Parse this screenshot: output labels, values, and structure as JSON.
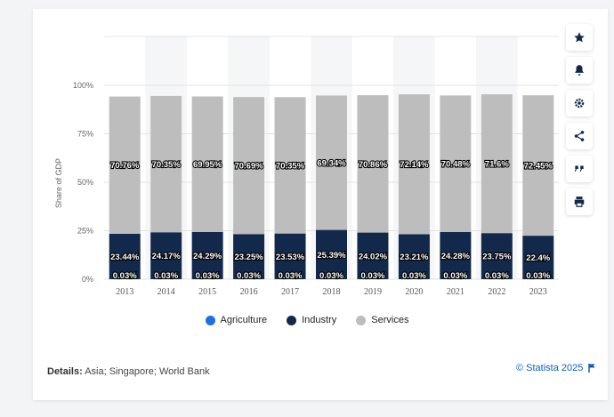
{
  "chart_data": {
    "type": "bar",
    "stacked": true,
    "categories": [
      "2013",
      "2014",
      "2015",
      "2016",
      "2017",
      "2018",
      "2019",
      "2020",
      "2021",
      "2022",
      "2023"
    ],
    "series": [
      {
        "name": "Agriculture",
        "values": [
          0.03,
          0.03,
          0.03,
          0.03,
          0.03,
          0.03,
          0.03,
          0.03,
          0.03,
          0.03,
          0.03
        ],
        "labels": [
          "0.03%",
          "0.03%",
          "0.03%",
          "0.03%",
          "0.03%",
          "0.03%",
          "0.03%",
          "0.03%",
          "0.03%",
          "0.03%",
          "0.03%"
        ],
        "color": "#1e6fe0"
      },
      {
        "name": "Industry",
        "values": [
          23.44,
          24.17,
          24.29,
          23.25,
          23.53,
          25.39,
          24.02,
          23.21,
          24.28,
          23.75,
          22.4
        ],
        "labels": [
          "23.44%",
          "24.17%",
          "24.29%",
          "23.25%",
          "23.53%",
          "25.39%",
          "24.02%",
          "23.21%",
          "24.28%",
          "23.75%",
          "22.4%"
        ],
        "color": "#13294b"
      },
      {
        "name": "Services",
        "values": [
          70.76,
          70.35,
          69.95,
          70.69,
          70.35,
          69.34,
          70.86,
          72.14,
          70.48,
          71.6,
          72.45
        ],
        "labels": [
          "70.76%",
          "70.35%",
          "69.95%",
          "70.69%",
          "70.35%",
          "69.34%",
          "70.86%",
          "72.14%",
          "70.48%",
          "71.6%",
          "72.45%"
        ],
        "color": "#bdbdbd"
      }
    ],
    "ylabel": "Share of GDP",
    "ylim": [
      0,
      100
    ],
    "yticks": [
      "0%",
      "25%",
      "50%",
      "75%",
      "100%"
    ],
    "grid": true,
    "legend_position": "bottom"
  },
  "legend": [
    {
      "label": "Agriculture",
      "color": "#1e6fe0"
    },
    {
      "label": "Industry",
      "color": "#13294b"
    },
    {
      "label": "Services",
      "color": "#bdbdbd"
    }
  ],
  "footer": {
    "details_label": "Details:",
    "details_text": " Asia; Singapore; World Bank",
    "credit": "© Statista 2025"
  },
  "toolbar": [
    {
      "icon": "star-icon"
    },
    {
      "icon": "bell-icon"
    },
    {
      "icon": "gear-icon"
    },
    {
      "icon": "share-icon"
    },
    {
      "icon": "quote-icon"
    },
    {
      "icon": "print-icon"
    }
  ]
}
